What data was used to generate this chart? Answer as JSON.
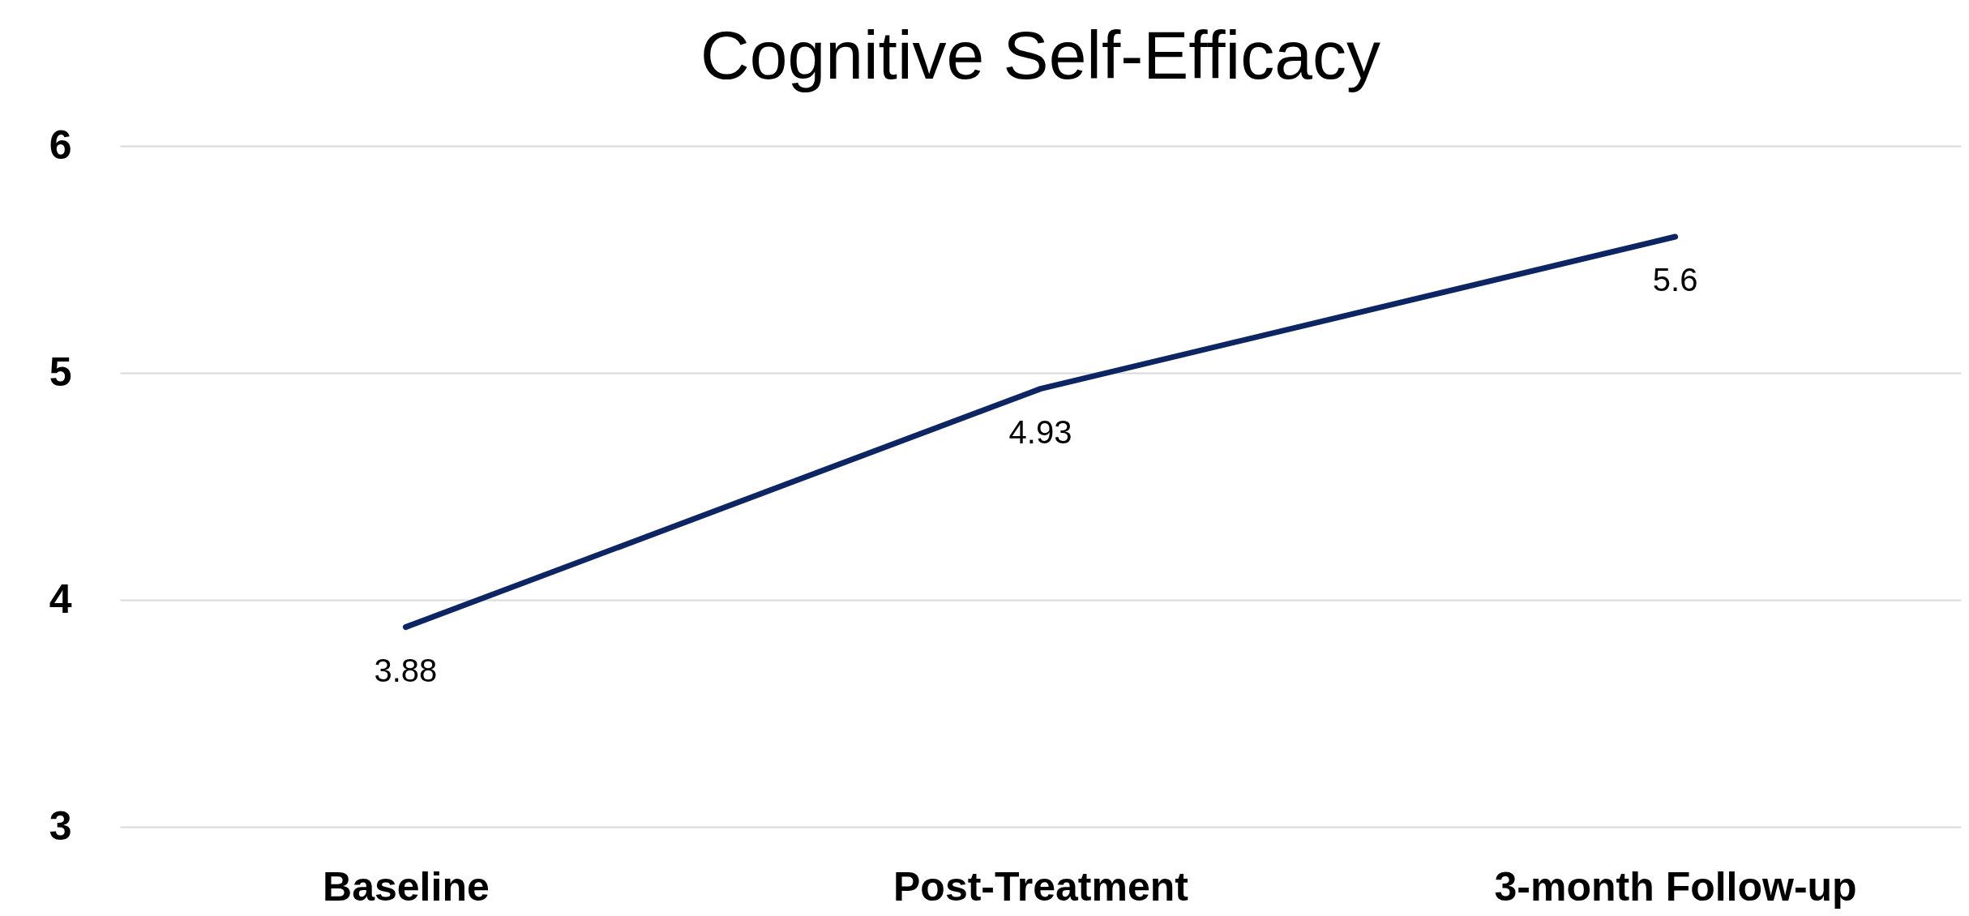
{
  "chart_data": {
    "type": "line",
    "title": "Cognitive Self-Efficacy",
    "categories": [
      "Baseline",
      "Post-Treatment",
      "3-month Follow-up"
    ],
    "series": [
      {
        "color": "#0e2563",
        "values": [
          3.88,
          4.93,
          5.6
        ]
      }
    ],
    "ylim": [
      3,
      6
    ],
    "yticks": [
      3,
      4,
      5,
      6
    ],
    "grid": "y",
    "data_labels": true,
    "marker": "none",
    "line_style": "solid",
    "legend": false
  }
}
